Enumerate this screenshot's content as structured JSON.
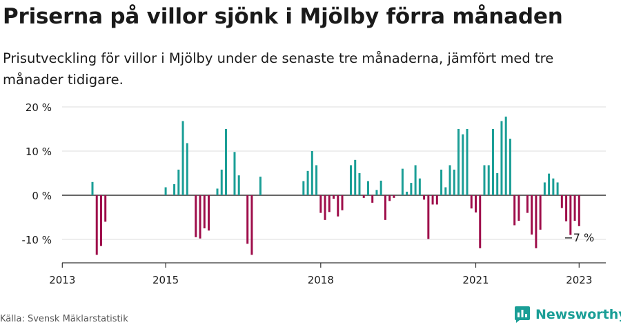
{
  "header": {
    "title": "Priserna på villor sjönk i Mjölby förra månaden",
    "subtitle": "Prisutveckling för villor i Mjölby under de senaste tre månaderna, jämfört med tre månader tidigare."
  },
  "footer": {
    "source": "Källa: Svensk Mäklarstatistik",
    "brand": "Newsworthy",
    "brand_icon": "newsworthy-logo-icon"
  },
  "colors": {
    "positive": "#1a9e96",
    "negative": "#9e0d4a",
    "grid": "#dddddd",
    "axis": "#333333",
    "text": "#1a1a1a",
    "brand": "#1a9e96"
  },
  "chart_data": {
    "type": "bar",
    "title": "",
    "xlabel": "",
    "ylabel": "",
    "unit": "%",
    "ylim": [
      -15,
      21
    ],
    "y_ticks": [
      -10,
      0,
      10,
      20
    ],
    "y_tick_labels": [
      "-10 %",
      "0 %",
      "10 %",
      "20 %"
    ],
    "x_ticks": [
      "2013",
      "2015",
      "2018",
      "2021",
      "2023"
    ],
    "grid": true,
    "legend": "none",
    "annotation": {
      "date": "2023-01",
      "label": "−7 %"
    },
    "x": [
      "2013-08",
      "2013-09",
      "2013-10",
      "2013-11",
      "2015-01",
      "2015-03",
      "2015-04",
      "2015-05",
      "2015-06",
      "2015-08",
      "2015-09",
      "2015-10",
      "2015-11",
      "2016-01",
      "2016-02",
      "2016-03",
      "2016-05",
      "2016-06",
      "2016-08",
      "2016-09",
      "2016-11",
      "2017-09",
      "2017-10",
      "2017-11",
      "2017-12",
      "2018-01",
      "2018-02",
      "2018-03",
      "2018-04",
      "2018-05",
      "2018-06",
      "2018-08",
      "2018-09",
      "2018-10",
      "2018-11",
      "2018-12",
      "2019-01",
      "2019-02",
      "2019-03",
      "2019-04",
      "2019-05",
      "2019-06",
      "2019-08",
      "2019-09",
      "2019-10",
      "2019-11",
      "2019-12",
      "2020-01",
      "2020-02",
      "2020-03",
      "2020-04",
      "2020-05",
      "2020-06",
      "2020-07",
      "2020-08",
      "2020-09",
      "2020-10",
      "2020-11",
      "2020-12",
      "2021-01",
      "2021-02",
      "2021-03",
      "2021-04",
      "2021-05",
      "2021-06",
      "2021-07",
      "2021-08",
      "2021-09",
      "2021-10",
      "2021-11",
      "2022-01",
      "2022-02",
      "2022-03",
      "2022-04",
      "2022-05",
      "2022-06",
      "2022-07",
      "2022-08",
      "2022-09",
      "2022-10",
      "2022-11",
      "2022-12",
      "2023-01"
    ],
    "values": [
      3,
      -13.5,
      -11.5,
      -6,
      1.8,
      2.5,
      5.8,
      16.8,
      11.8,
      -9.5,
      -9.8,
      -7.5,
      -8,
      1.5,
      5.8,
      15,
      9.8,
      4.5,
      -11,
      -13.5,
      4.2,
      3.2,
      5.5,
      10,
      6.8,
      -4,
      -5.6,
      -3.8,
      -0.8,
      -4.8,
      -3.4,
      6.8,
      8,
      5,
      -0.6,
      3.2,
      -1.7,
      1.2,
      3.3,
      -5.6,
      -1.3,
      -0.6,
      6,
      0.8,
      2.8,
      6.8,
      3.8,
      -1,
      -9.9,
      -2.1,
      -2.1,
      5.8,
      1.8,
      6.8,
      5.8,
      15,
      13.8,
      15,
      -3,
      -3.9,
      -12,
      6.8,
      6.8,
      15,
      5,
      16.8,
      17.8,
      12.8,
      -6.8,
      -5.8,
      -4,
      -8.9,
      -12,
      -7.8,
      2.9,
      4.9,
      3.8,
      2.9,
      -2.9,
      -5.9,
      -9,
      -5.8,
      -7
    ]
  }
}
